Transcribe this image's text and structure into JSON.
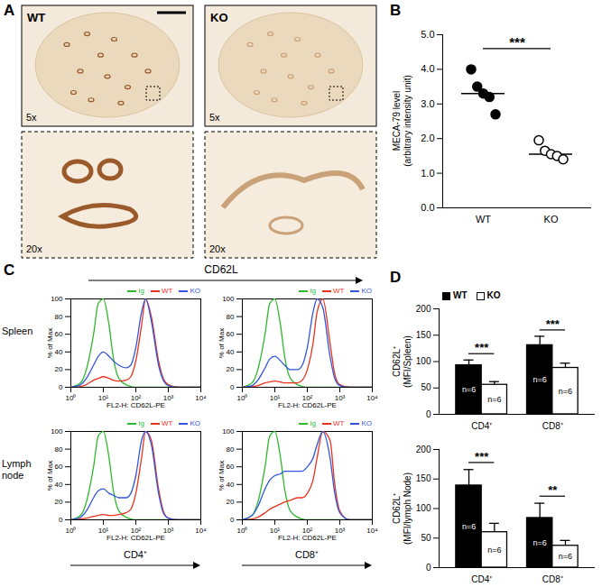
{
  "chart_data": [
    {
      "panel": "A",
      "type": "image",
      "panels": [
        {
          "label": "WT",
          "views": [
            "5x",
            "20x"
          ]
        },
        {
          "label": "KO",
          "views": [
            "5x",
            "20x"
          ]
        }
      ]
    },
    {
      "panel": "B",
      "type": "scatter",
      "ylabel": "MECA-79 level\n(arbitrary intensity unit)",
      "ylim": [
        0,
        5
      ],
      "yticks": [
        0,
        1,
        2,
        3,
        4,
        5
      ],
      "series": [
        {
          "name": "WT",
          "color": "#000000",
          "marker": "filled",
          "values": [
            4.0,
            3.5,
            3.3,
            3.2,
            2.7
          ]
        },
        {
          "name": "KO",
          "color": "#000000",
          "marker": "open",
          "values": [
            1.95,
            1.65,
            1.55,
            1.5,
            1.4
          ]
        }
      ],
      "medians": [
        3.3,
        1.55
      ],
      "significance": "***"
    },
    {
      "panel": "C",
      "type": "line",
      "header": "CD62L",
      "rows": [
        "Spleen",
        "Lymph node"
      ],
      "columns": [
        "CD4⁺",
        "CD8⁺"
      ],
      "xlabel": "FL2-H: CD62L-PE",
      "ylabel": "% of Max",
      "log": "x",
      "xlim": [
        1,
        10000
      ],
      "xticks": [
        {
          "value": 1,
          "label": "10⁰"
        },
        {
          "value": 10,
          "label": "10¹"
        },
        {
          "value": 100,
          "label": "10²"
        },
        {
          "value": 1000,
          "label": "10³"
        },
        {
          "value": 10000,
          "label": "10⁴"
        }
      ],
      "ylim": [
        0,
        100
      ],
      "yticks": [
        0,
        20,
        40,
        60,
        80,
        100
      ],
      "legend": "top",
      "x": [
        1,
        2,
        3,
        5,
        7,
        10,
        15,
        20,
        30,
        50,
        70,
        100,
        150,
        200,
        300,
        500,
        700,
        1000,
        2000,
        5000,
        10000
      ],
      "panels": [
        {
          "series": [
            {
              "name": "Ig",
              "color": "#2db82d",
              "values": [
                0,
                5,
                20,
                60,
                95,
                100,
                70,
                35,
                10,
                3,
                1,
                0,
                0,
                0,
                0,
                0,
                0,
                0,
                0,
                0,
                0
              ]
            },
            {
              "name": "WT",
              "color": "#e8321e",
              "values": [
                0,
                1,
                3,
                8,
                10,
                12,
                10,
                8,
                7,
                8,
                12,
                30,
                70,
                100,
                80,
                30,
                10,
                3,
                0,
                0,
                0
              ]
            },
            {
              "name": "KO",
              "color": "#3355dd",
              "values": [
                0,
                3,
                10,
                25,
                35,
                40,
                35,
                30,
                25,
                22,
                25,
                45,
                85,
                100,
                75,
                25,
                8,
                2,
                0,
                0,
                0
              ]
            }
          ]
        },
        {
          "series": [
            {
              "name": "Ig",
              "color": "#2db82d",
              "values": [
                0,
                5,
                20,
                60,
                95,
                100,
                70,
                35,
                10,
                3,
                1,
                0,
                0,
                0,
                0,
                0,
                0,
                0,
                0,
                0,
                0
              ]
            },
            {
              "name": "WT",
              "color": "#e8321e",
              "values": [
                0,
                1,
                2,
                5,
                6,
                7,
                6,
                5,
                5,
                5,
                8,
                20,
                50,
                85,
                100,
                50,
                15,
                3,
                0,
                0,
                0
              ]
            },
            {
              "name": "KO",
              "color": "#3355dd",
              "values": [
                0,
                2,
                8,
                22,
                32,
                35,
                30,
                25,
                20,
                20,
                25,
                45,
                85,
                100,
                90,
                35,
                10,
                2,
                0,
                0,
                0
              ]
            }
          ]
        },
        {
          "series": [
            {
              "name": "Ig",
              "color": "#2db82d",
              "values": [
                0,
                5,
                20,
                60,
                95,
                100,
                70,
                35,
                10,
                3,
                1,
                0,
                0,
                0,
                0,
                0,
                0,
                0,
                0,
                0,
                0
              ]
            },
            {
              "name": "WT",
              "color": "#e8321e",
              "values": [
                0,
                1,
                2,
                4,
                5,
                6,
                5,
                5,
                6,
                8,
                12,
                30,
                70,
                100,
                90,
                35,
                10,
                2,
                0,
                0,
                0
              ]
            },
            {
              "name": "KO",
              "color": "#3355dd",
              "values": [
                0,
                3,
                10,
                25,
                33,
                35,
                30,
                28,
                25,
                25,
                30,
                50,
                90,
                100,
                85,
                30,
                8,
                2,
                0,
                0,
                0
              ]
            }
          ]
        },
        {
          "series": [
            {
              "name": "Ig",
              "color": "#2db82d",
              "values": [
                0,
                5,
                20,
                60,
                95,
                100,
                70,
                35,
                10,
                3,
                1,
                0,
                0,
                0,
                0,
                0,
                0,
                0,
                0,
                0,
                0
              ]
            },
            {
              "name": "WT",
              "color": "#e8321e",
              "values": [
                0,
                1,
                3,
                8,
                12,
                15,
                18,
                20,
                22,
                25,
                25,
                30,
                45,
                70,
                100,
                90,
                40,
                10,
                0,
                0,
                0
              ]
            },
            {
              "name": "KO",
              "color": "#3355dd",
              "values": [
                0,
                5,
                15,
                35,
                45,
                50,
                52,
                55,
                55,
                55,
                55,
                60,
                70,
                85,
                100,
                70,
                30,
                8,
                0,
                0,
                0
              ]
            }
          ]
        }
      ]
    },
    {
      "panel": "D",
      "type": "bar",
      "charts": [
        {
          "ylabel": "CD62L⁺\n(MFI/Spleen)",
          "categories": [
            "CD4⁺",
            "CD8⁺"
          ],
          "ylim": [
            0,
            200
          ],
          "yticks": [
            0,
            50,
            100,
            150,
            200
          ],
          "legend": "top-left",
          "series": [
            {
              "name": "WT",
              "color": "#000000",
              "values": [
                93,
                131
              ],
              "errors": [
                10,
                17
              ],
              "annotations": [
                "n=6",
                "n=6"
              ]
            },
            {
              "name": "KO",
              "color": "#ffffff",
              "values": [
                56,
                88
              ],
              "errors": [
                6,
                9
              ],
              "annotations": [
                "n=6",
                "n=6"
              ]
            }
          ],
          "significance": [
            "***",
            "***"
          ]
        },
        {
          "ylabel": "CD62L⁺\n(MFI/lymph Node)",
          "categories": [
            "CD4⁺",
            "CD8⁺"
          ],
          "ylim": [
            0,
            200
          ],
          "yticks": [
            0,
            50,
            100,
            150,
            200
          ],
          "series": [
            {
              "name": "WT",
              "color": "#000000",
              "values": [
                139,
                84
              ],
              "errors": [
                27,
                25
              ],
              "annotations": [
                "n=6",
                "n=6"
              ]
            },
            {
              "name": "KO",
              "color": "#ffffff",
              "values": [
                60,
                37
              ],
              "errors": [
                15,
                9
              ],
              "annotations": [
                "n=6",
                "n=6"
              ]
            }
          ],
          "significance": [
            "***",
            "**"
          ]
        }
      ]
    }
  ]
}
